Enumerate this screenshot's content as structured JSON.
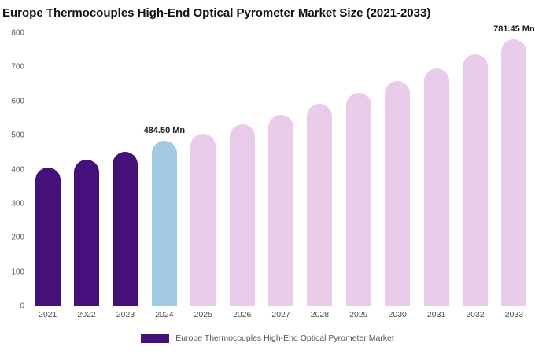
{
  "title": "Europe Thermocouples High-End Optical Pyrometer Market Size (2021-2033)",
  "legend": {
    "label": "Europe Thermocouples High-End Optical Pyrometer Market",
    "swatch_color": "#45107a"
  },
  "colors": {
    "historical_bar": "#45107a",
    "current_year_bar": "#a1c9e4",
    "forecast_bar": "#e9cbea",
    "background": "#ffffff",
    "tick_text": "#595959"
  },
  "chart_data": {
    "type": "bar",
    "title": "Europe Thermocouples High-End Optical Pyrometer Market Size (2021-2033)",
    "xlabel": "",
    "ylabel": "",
    "ylim": [
      0,
      800
    ],
    "yticks": [
      0,
      100,
      200,
      300,
      400,
      500,
      600,
      700,
      800
    ],
    "grid": false,
    "legend_position": "bottom",
    "categories": [
      "2021",
      "2022",
      "2023",
      "2024",
      "2025",
      "2026",
      "2027",
      "2028",
      "2029",
      "2030",
      "2031",
      "2032",
      "2033"
    ],
    "values": [
      405,
      428,
      452,
      484.5,
      505,
      532,
      560,
      592,
      625,
      660,
      697,
      737,
      781.45
    ],
    "unit": "Mn",
    "colors": [
      "#45107a",
      "#45107a",
      "#45107a",
      "#a1c9e4",
      "#e9cbea",
      "#e9cbea",
      "#e9cbea",
      "#e9cbea",
      "#e9cbea",
      "#e9cbea",
      "#e9cbea",
      "#e9cbea",
      "#e9cbea"
    ],
    "annotations": [
      {
        "category": "2024",
        "text": "484.50 Mn"
      },
      {
        "category": "2033",
        "text": "781.45 Mn"
      }
    ]
  }
}
